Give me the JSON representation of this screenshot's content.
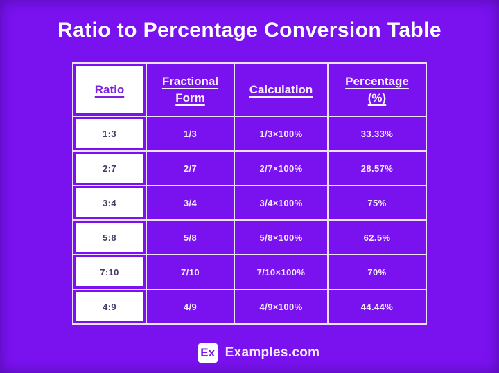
{
  "page": {
    "title": "Ratio to Percentage Conversion Table",
    "background_color": "#7a12f0",
    "grid_line_color": "#efe1fb",
    "accent_purple_text": "#7d20e2",
    "ratio_cell_text_color": "#4a3a66"
  },
  "table": {
    "columns": [
      {
        "key": "ratio",
        "label": "Ratio"
      },
      {
        "key": "fraction",
        "label": "Fractional Form"
      },
      {
        "key": "calculation",
        "label": "Calculation"
      },
      {
        "key": "percentage",
        "label": "Percentage (%)"
      }
    ],
    "rows": [
      {
        "ratio": "1:3",
        "fraction": "1/3",
        "calculation": "1/3×100%",
        "percentage": "33.33%"
      },
      {
        "ratio": "2:7",
        "fraction": "2/7",
        "calculation": "2/7×100%",
        "percentage": "28.57%"
      },
      {
        "ratio": "3:4",
        "fraction": "3/4",
        "calculation": "3/4×100%",
        "percentage": "75%"
      },
      {
        "ratio": "5:8",
        "fraction": "5/8",
        "calculation": "5/8×100%",
        "percentage": "62.5%"
      },
      {
        "ratio": "7:10",
        "fraction": "7/10",
        "calculation": "7/10×100%",
        "percentage": "70%"
      },
      {
        "ratio": "4:9",
        "fraction": "4/9",
        "calculation": "4/9×100%",
        "percentage": "44.44%"
      }
    ]
  },
  "footer": {
    "logo_text": "Ex",
    "brand_text": "Examples.com"
  }
}
